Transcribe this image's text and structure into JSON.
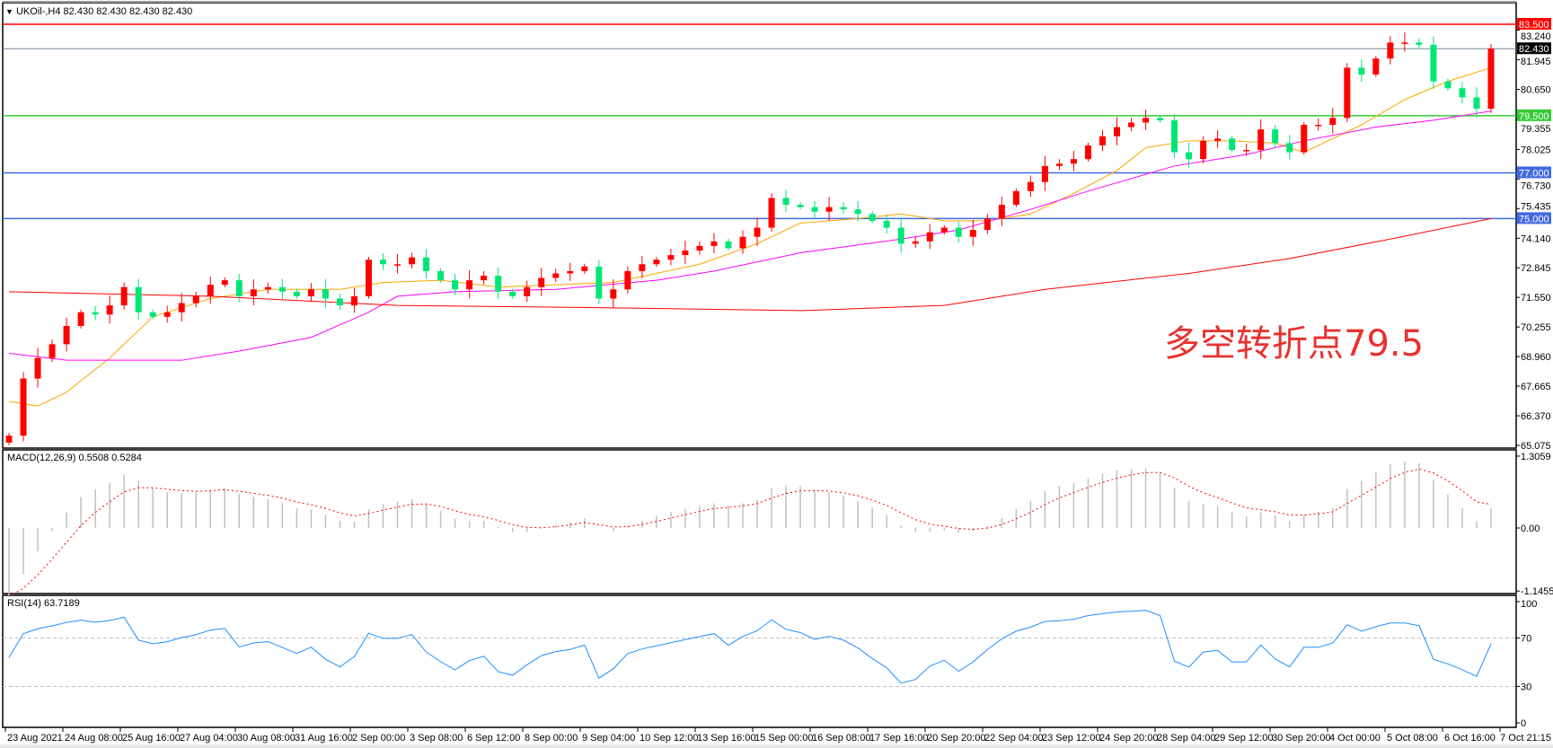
{
  "header": {
    "symbol_line": "UKOil-,H4  82.430 82.430 82.430 82.430",
    "menu_icon": "triangle-down-icon"
  },
  "annotation": {
    "text": "多空转折点79.5",
    "color": "#e8312f"
  },
  "colors": {
    "up_candle": "#ff0000",
    "down_candle": "#00e676",
    "ma_fast": "#ffa500",
    "ma_mid": "#ff00ff",
    "ma_slow": "#ff0000",
    "macd_hist": "#c0c0c0",
    "macd_signal": "#ff0000",
    "rsi": "#1e90ff"
  },
  "chart_data": [
    {
      "type": "candlestick",
      "title": "UKOil-,H4",
      "ylim": [
        65.075,
        83.5
      ],
      "y_ticks": [
        "83.240",
        "81.945",
        "80.650",
        "79.355",
        "78.025",
        "76.730",
        "75.435",
        "74.140",
        "72.845",
        "71.550",
        "70.255",
        "68.960",
        "67.665",
        "66.370",
        "65.075"
      ],
      "x_tick_labels": [
        "23 Aug 2021",
        "24 Aug 08:00",
        "25 Aug 16:00",
        "27 Aug 04:00",
        "30 Aug 08:00",
        "31 Aug 16:00",
        "2 Sep 00:00",
        "3 Sep 08:00",
        "6 Sep 12:00",
        "8 Sep 00:00",
        "9 Sep 04:00",
        "10 Sep 12:00",
        "13 Sep 16:00",
        "15 Sep 00:00",
        "16 Sep 08:00",
        "17 Sep 16:00",
        "20 Sep 20:00",
        "22 Sep 04:00",
        "23 Sep 12:00",
        "24 Sep 20:00",
        "28 Sep 04:00",
        "29 Sep 12:00",
        "30 Sep 20:00",
        "4 Oct 00:00",
        "5 Oct 08:00",
        "6 Oct 16:00",
        "7 Oct 21:15"
      ],
      "first_open": 65.2,
      "close": [
        65.5,
        68.0,
        68.9,
        69.5,
        70.3,
        70.9,
        70.8,
        71.2,
        72.0,
        70.9,
        70.7,
        70.9,
        71.3,
        71.6,
        72.1,
        72.3,
        71.6,
        71.9,
        72.0,
        71.8,
        71.6,
        71.9,
        71.5,
        71.2,
        71.6,
        73.2,
        73.0,
        73.0,
        73.3,
        72.7,
        72.3,
        71.9,
        72.3,
        72.5,
        71.8,
        71.6,
        72.0,
        72.4,
        72.6,
        72.7,
        72.9,
        71.5,
        71.9,
        72.7,
        73.0,
        73.2,
        73.4,
        73.6,
        73.8,
        74.0,
        73.7,
        74.2,
        74.6,
        75.9,
        75.6,
        75.5,
        75.3,
        75.5,
        75.4,
        75.2,
        74.9,
        74.6,
        73.9,
        74.0,
        74.4,
        74.6,
        74.2,
        74.5,
        75.0,
        75.6,
        76.2,
        76.6,
        77.3,
        77.4,
        77.6,
        78.2,
        78.6,
        79.0,
        79.2,
        79.4,
        79.3,
        77.9,
        77.6,
        78.4,
        78.5,
        78.0,
        78.0,
        78.9,
        78.3,
        77.9,
        79.1,
        79.1,
        79.4,
        81.6,
        81.3,
        82.0,
        82.7,
        82.7,
        82.6,
        81.0,
        80.7,
        80.3,
        79.8,
        82.43
      ],
      "moving_averages": [
        {
          "color": "#ffa500",
          "points": [
            [
              0,
              67.0
            ],
            [
              2,
              66.8
            ],
            [
              4,
              67.4
            ],
            [
              7,
              68.9
            ],
            [
              10,
              70.7
            ],
            [
              14,
              71.5
            ],
            [
              18,
              71.9
            ],
            [
              23,
              71.9
            ],
            [
              26,
              72.2
            ],
            [
              30,
              72.3
            ],
            [
              34,
              72.0
            ],
            [
              38,
              72.1
            ],
            [
              42,
              72.2
            ],
            [
              45,
              72.6
            ],
            [
              48,
              73.0
            ],
            [
              52,
              73.9
            ],
            [
              55,
              74.8
            ],
            [
              59,
              75.0
            ],
            [
              62,
              75.2
            ],
            [
              65,
              74.9
            ],
            [
              68,
              74.9
            ],
            [
              71,
              75.2
            ],
            [
              74,
              76.1
            ],
            [
              77,
              77.1
            ],
            [
              79,
              78.1
            ],
            [
              82,
              78.4
            ],
            [
              85,
              78.4
            ],
            [
              88,
              78.3
            ],
            [
              90,
              77.9
            ],
            [
              94,
              79.1
            ],
            [
              97,
              80.2
            ],
            [
              100,
              81.0
            ],
            [
              103,
              81.6
            ]
          ]
        },
        {
          "color": "#ff00ff",
          "points": [
            [
              0,
              69.1
            ],
            [
              4,
              68.8
            ],
            [
              12,
              68.8
            ],
            [
              16,
              69.2
            ],
            [
              21,
              69.8
            ],
            [
              25,
              70.9
            ],
            [
              27,
              71.6
            ],
            [
              31,
              71.8
            ],
            [
              38,
              71.9
            ],
            [
              45,
              72.3
            ],
            [
              49,
              72.7
            ],
            [
              55,
              73.5
            ],
            [
              62,
              74.1
            ],
            [
              66,
              74.5
            ],
            [
              71,
              75.4
            ],
            [
              75,
              76.2
            ],
            [
              81,
              77.3
            ],
            [
              86,
              77.8
            ],
            [
              90,
              78.4
            ],
            [
              95,
              79.0
            ],
            [
              99,
              79.3
            ],
            [
              103,
              79.7
            ]
          ]
        },
        {
          "color": "#ff0000",
          "points": [
            [
              0,
              71.8
            ],
            [
              14,
              71.6
            ],
            [
              27,
              71.2
            ],
            [
              41,
              71.1
            ],
            [
              55,
              70.97
            ],
            [
              65,
              71.2
            ],
            [
              72,
              71.9
            ],
            [
              82,
              72.6
            ],
            [
              89,
              73.25
            ],
            [
              96,
              74.1
            ],
            [
              103,
              75.0
            ]
          ]
        }
      ],
      "horizontal_lines": [
        {
          "value": 83.5,
          "label": "83.500",
          "color": "#ff0000"
        },
        {
          "value": 82.43,
          "label": "82.430",
          "color": "#000000",
          "line_color": "#778899"
        },
        {
          "value": 79.5,
          "label": "79.500",
          "color": "#33cc33"
        },
        {
          "value": 77.0,
          "label": "77.000",
          "color": "#4169e1"
        },
        {
          "value": 75.0,
          "label": "75.000",
          "color": "#4169e1"
        }
      ]
    },
    {
      "type": "bar",
      "title": "MACD(12,26,9) 0.5508 0.5284",
      "ylim": [
        -1.1455,
        1.3059
      ],
      "y_ticks": [
        "1.3059",
        "0.00",
        "-1.1455"
      ],
      "series": [
        {
          "name": "MACD",
          "kind": "histogram"
        },
        {
          "name": "Signal",
          "kind": "dotted-line"
        }
      ]
    },
    {
      "type": "line",
      "title": "RSI(14) 63.7189",
      "ylim": [
        0,
        100
      ],
      "y_ticks": [
        "100",
        "70",
        "30",
        "0"
      ],
      "levels": [
        70,
        30
      ]
    }
  ]
}
